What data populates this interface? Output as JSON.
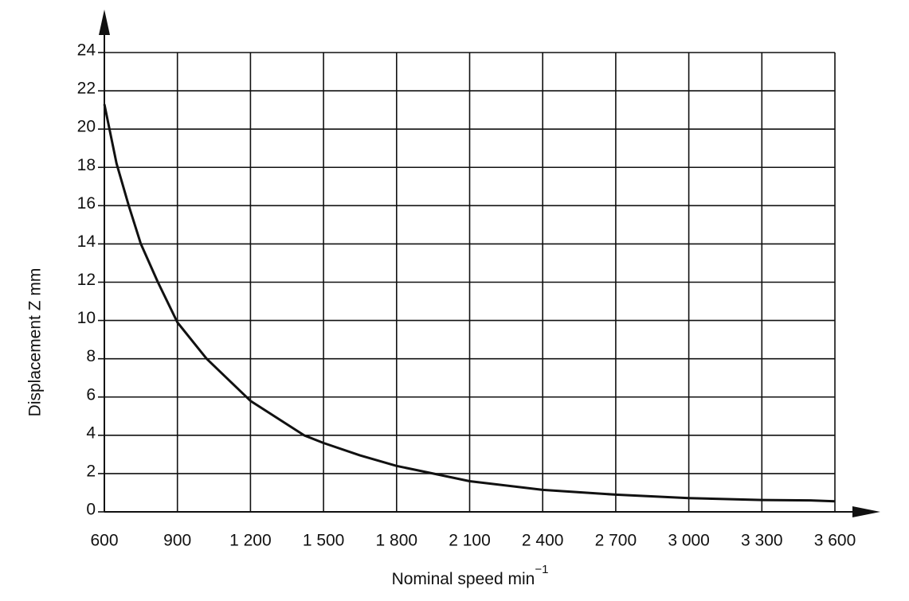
{
  "chart_data": {
    "type": "line",
    "xlabel": "Nominal speed min",
    "xlabel_sup": "−1",
    "ylabel": "Displacement Z   mm",
    "x": [
      600,
      650,
      700,
      750,
      820,
      900,
      1020,
      1200,
      1420,
      1500,
      1650,
      1800,
      1950,
      2100,
      2400,
      2700,
      3000,
      3300,
      3500,
      3600
    ],
    "series": [
      {
        "color": "#111111",
        "values": [
          21.3,
          18.2,
          16.0,
          14.0,
          12.0,
          9.9,
          8.0,
          5.8,
          4.0,
          3.6,
          2.95,
          2.4,
          2.0,
          1.6,
          1.15,
          0.9,
          0.72,
          0.62,
          0.6,
          0.55
        ]
      }
    ],
    "xlim": [
      600,
      3600
    ],
    "ylim": [
      0,
      24
    ],
    "xticks": [
      600,
      900,
      {
        "value": 1200,
        "label": "1 200"
      },
      {
        "value": 1500,
        "label": "1 500"
      },
      {
        "value": 1800,
        "label": "1 800"
      },
      {
        "value": 2100,
        "label": "2 100"
      },
      {
        "value": 2400,
        "label": "2 400"
      },
      {
        "value": 2700,
        "label": "2 700"
      },
      {
        "value": 3000,
        "label": "3 000"
      },
      {
        "value": 3300,
        "label": "3 300"
      },
      {
        "value": 3600,
        "label": "3 600"
      }
    ],
    "yticks": [
      0,
      2,
      4,
      6,
      8,
      10,
      12,
      14,
      16,
      18,
      20,
      22,
      24
    ],
    "grid": true
  }
}
